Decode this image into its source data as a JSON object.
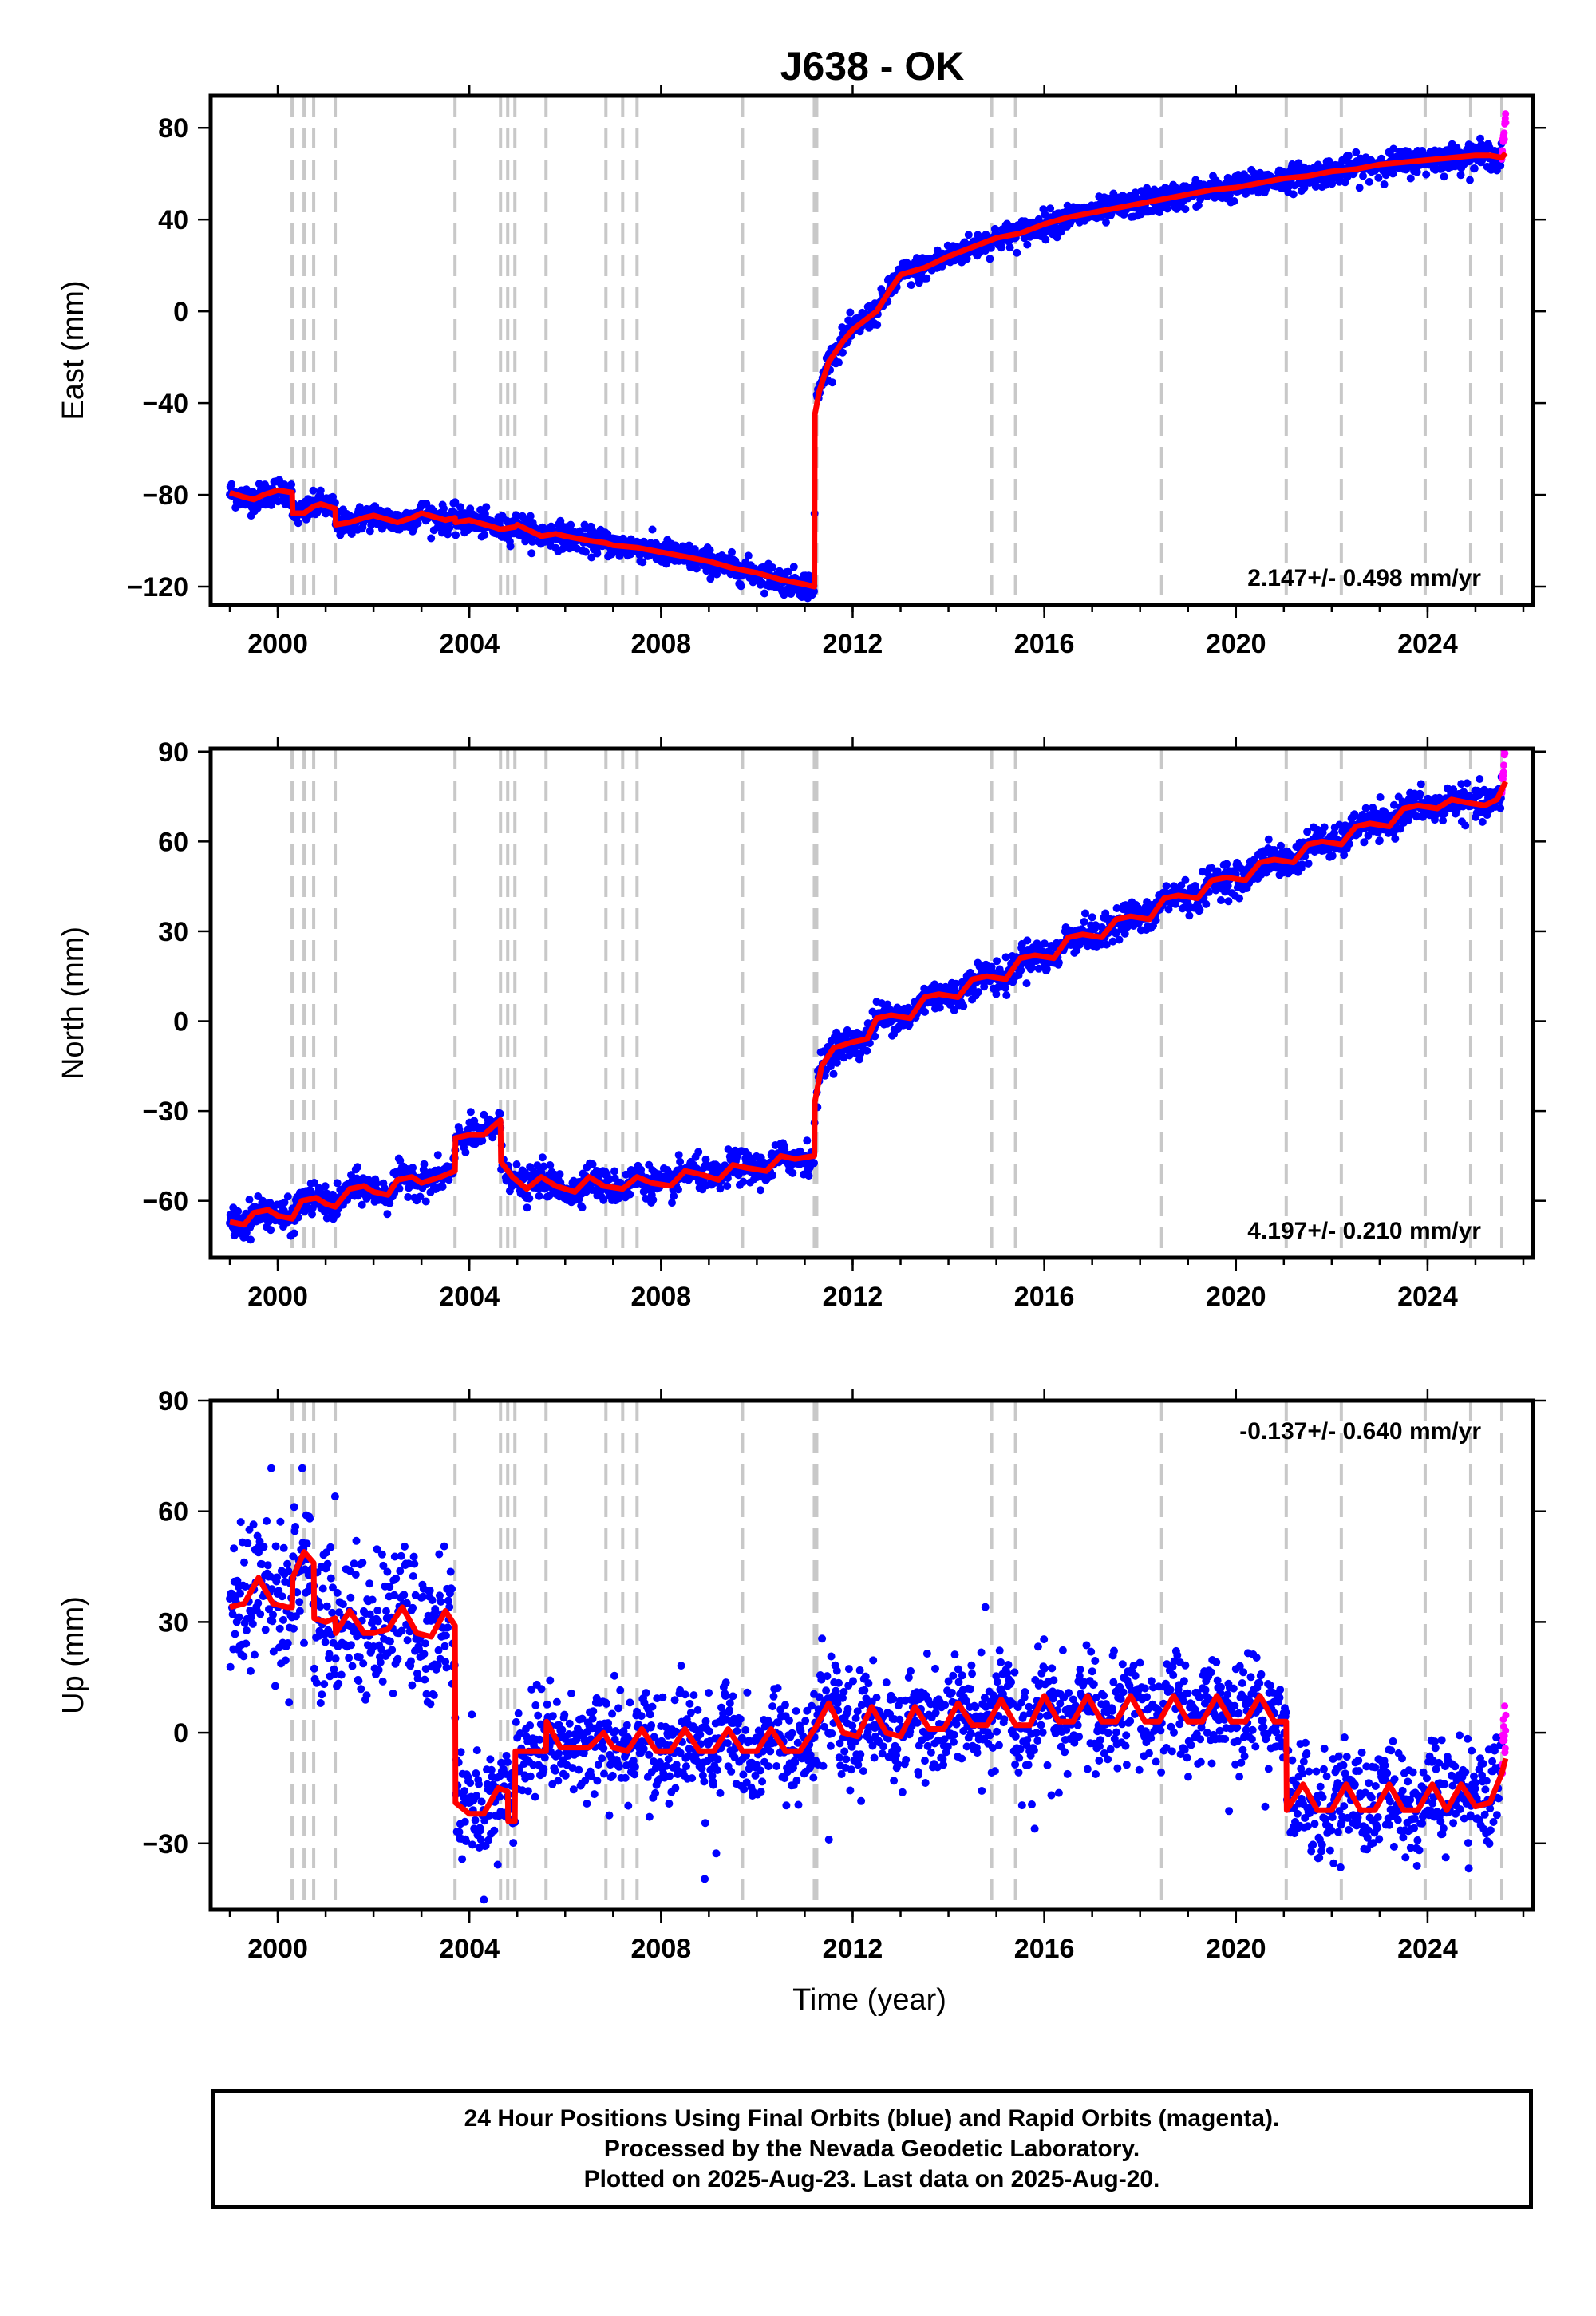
{
  "title": "J638 - OK",
  "chart_data": [
    {
      "type": "scatter",
      "name": "east",
      "ylabel": "East (mm)",
      "xlabel": "",
      "xlim": [
        1998.6,
        2026.2
      ],
      "ylim": [
        -128,
        94
      ],
      "yticks": [
        -120,
        -80,
        -40,
        0,
        40,
        80
      ],
      "xticks": [
        2000,
        2004,
        2008,
        2012,
        2016,
        2020,
        2024
      ],
      "rate": "2.147+/- 0.498 mm/yr",
      "rate_position": "bottom-right",
      "equipment_changes": [
        2000.3,
        2000.55,
        2000.75,
        2001.2,
        2003.7,
        2004.65,
        2004.8,
        2004.95,
        2005.6,
        2006.85,
        2007.2,
        2007.5,
        2009.7,
        2011.2,
        2011.25,
        2014.9,
        2015.4,
        2018.45,
        2021.05,
        2022.2,
        2023.95,
        2024.9,
        2025.55
      ],
      "model": [
        [
          1999.0,
          -79
        ],
        [
          1999.3,
          -81
        ],
        [
          1999.5,
          -82
        ],
        [
          1999.7,
          -80
        ],
        [
          2000.0,
          -78
        ],
        [
          2000.3,
          -79
        ],
        [
          2000.31,
          -88
        ],
        [
          2000.55,
          -88
        ],
        [
          2000.75,
          -85
        ],
        [
          2000.9,
          -84
        ],
        [
          2001.2,
          -86
        ],
        [
          2001.21,
          -93
        ],
        [
          2001.5,
          -92
        ],
        [
          2001.8,
          -90
        ],
        [
          2002.0,
          -89
        ],
        [
          2002.5,
          -92
        ],
        [
          2002.8,
          -90
        ],
        [
          2003.0,
          -88
        ],
        [
          2003.5,
          -91
        ],
        [
          2003.7,
          -90
        ],
        [
          2003.71,
          -92
        ],
        [
          2004.0,
          -91
        ],
        [
          2004.5,
          -94
        ],
        [
          2004.65,
          -95
        ],
        [
          2004.95,
          -94
        ],
        [
          2005.0,
          -93
        ],
        [
          2005.5,
          -98
        ],
        [
          2005.8,
          -97
        ],
        [
          2006.0,
          -98
        ],
        [
          2006.5,
          -100
        ],
        [
          2006.85,
          -101
        ],
        [
          2007.0,
          -102
        ],
        [
          2007.5,
          -103
        ],
        [
          2008.0,
          -105
        ],
        [
          2008.5,
          -107
        ],
        [
          2009.0,
          -109
        ],
        [
          2009.5,
          -112
        ],
        [
          2010.0,
          -114
        ],
        [
          2010.5,
          -117
        ],
        [
          2011.0,
          -119
        ],
        [
          2011.2,
          -120
        ],
        [
          2011.21,
          -45
        ],
        [
          2011.3,
          -35
        ],
        [
          2011.5,
          -22
        ],
        [
          2011.8,
          -13
        ],
        [
          2012.0,
          -8
        ],
        [
          2012.5,
          0
        ],
        [
          2012.8,
          10
        ],
        [
          2013.0,
          16
        ],
        [
          2013.5,
          19
        ],
        [
          2014.0,
          24
        ],
        [
          2014.5,
          28
        ],
        [
          2015.0,
          32
        ],
        [
          2015.5,
          34
        ],
        [
          2016.0,
          38
        ],
        [
          2016.5,
          41
        ],
        [
          2017.0,
          43
        ],
        [
          2017.5,
          45
        ],
        [
          2018.0,
          47
        ],
        [
          2018.5,
          49
        ],
        [
          2019.0,
          51
        ],
        [
          2019.5,
          53
        ],
        [
          2020.0,
          54
        ],
        [
          2020.5,
          56
        ],
        [
          2021.0,
          58
        ],
        [
          2021.5,
          59
        ],
        [
          2022.0,
          61
        ],
        [
          2022.5,
          62
        ],
        [
          2023.0,
          64
        ],
        [
          2023.5,
          65
        ],
        [
          2024.0,
          66
        ],
        [
          2024.5,
          67
        ],
        [
          2025.0,
          68
        ],
        [
          2025.3,
          68
        ],
        [
          2025.55,
          67
        ],
        [
          2025.63,
          69
        ]
      ]
    },
    {
      "type": "scatter",
      "name": "north",
      "ylabel": "North (mm)",
      "xlabel": "",
      "xlim": [
        1998.6,
        2026.2
      ],
      "ylim": [
        -79,
        91
      ],
      "yticks": [
        -60,
        -30,
        0,
        30,
        60,
        90
      ],
      "xticks": [
        2000,
        2004,
        2008,
        2012,
        2016,
        2020,
        2024
      ],
      "rate": "4.197+/- 0.210 mm/yr",
      "rate_position": "bottom-right",
      "equipment_changes": [
        2000.3,
        2000.55,
        2000.75,
        2001.2,
        2003.7,
        2004.65,
        2004.8,
        2004.95,
        2005.6,
        2006.85,
        2007.2,
        2007.5,
        2009.7,
        2011.2,
        2011.25,
        2014.9,
        2015.4,
        2018.45,
        2021.05,
        2022.2,
        2023.95,
        2024.9,
        2025.55
      ],
      "model": [
        [
          1999.0,
          -67
        ],
        [
          1999.3,
          -68
        ],
        [
          1999.5,
          -64
        ],
        [
          1999.8,
          -63
        ],
        [
          2000.0,
          -65
        ],
        [
          2000.3,
          -66
        ],
        [
          2000.5,
          -60
        ],
        [
          2000.8,
          -59
        ],
        [
          2001.0,
          -61
        ],
        [
          2001.2,
          -62
        ],
        [
          2001.5,
          -56
        ],
        [
          2001.8,
          -55
        ],
        [
          2002.0,
          -57
        ],
        [
          2002.3,
          -58
        ],
        [
          2002.5,
          -53
        ],
        [
          2002.8,
          -52
        ],
        [
          2003.0,
          -54
        ],
        [
          2003.4,
          -52
        ],
        [
          2003.7,
          -50
        ],
        [
          2003.71,
          -39
        ],
        [
          2004.0,
          -38
        ],
        [
          2004.3,
          -38
        ],
        [
          2004.65,
          -33
        ],
        [
          2004.66,
          -47
        ],
        [
          2004.9,
          -52
        ],
        [
          2005.2,
          -56
        ],
        [
          2005.5,
          -52
        ],
        [
          2005.8,
          -55
        ],
        [
          2006.2,
          -57
        ],
        [
          2006.5,
          -52
        ],
        [
          2006.8,
          -55
        ],
        [
          2007.2,
          -56
        ],
        [
          2007.5,
          -52
        ],
        [
          2007.8,
          -54
        ],
        [
          2008.2,
          -55
        ],
        [
          2008.5,
          -50
        ],
        [
          2008.8,
          -51
        ],
        [
          2009.2,
          -53
        ],
        [
          2009.5,
          -48
        ],
        [
          2009.8,
          -49
        ],
        [
          2010.2,
          -50
        ],
        [
          2010.5,
          -45
        ],
        [
          2010.8,
          -46
        ],
        [
          2011.2,
          -45
        ],
        [
          2011.21,
          -27
        ],
        [
          2011.35,
          -15
        ],
        [
          2011.6,
          -9
        ],
        [
          2012.0,
          -7
        ],
        [
          2012.3,
          -6
        ],
        [
          2012.5,
          1
        ],
        [
          2012.8,
          2
        ],
        [
          2013.2,
          1
        ],
        [
          2013.5,
          8
        ],
        [
          2013.8,
          9
        ],
        [
          2014.2,
          8
        ],
        [
          2014.5,
          14
        ],
        [
          2014.8,
          15
        ],
        [
          2015.2,
          14
        ],
        [
          2015.5,
          21
        ],
        [
          2015.8,
          22
        ],
        [
          2016.2,
          21
        ],
        [
          2016.5,
          28
        ],
        [
          2016.8,
          29
        ],
        [
          2017.2,
          28
        ],
        [
          2017.5,
          34
        ],
        [
          2017.8,
          35
        ],
        [
          2018.2,
          34
        ],
        [
          2018.5,
          41
        ],
        [
          2018.8,
          42
        ],
        [
          2019.2,
          41
        ],
        [
          2019.5,
          47
        ],
        [
          2019.8,
          48
        ],
        [
          2020.2,
          47
        ],
        [
          2020.5,
          53
        ],
        [
          2020.8,
          54
        ],
        [
          2021.2,
          53
        ],
        [
          2021.5,
          59
        ],
        [
          2021.8,
          60
        ],
        [
          2022.2,
          59
        ],
        [
          2022.5,
          65
        ],
        [
          2022.8,
          66
        ],
        [
          2023.2,
          65
        ],
        [
          2023.5,
          71
        ],
        [
          2023.8,
          72
        ],
        [
          2024.2,
          71
        ],
        [
          2024.5,
          74
        ],
        [
          2024.8,
          73
        ],
        [
          2025.2,
          72
        ],
        [
          2025.45,
          74
        ],
        [
          2025.63,
          80
        ]
      ]
    },
    {
      "type": "scatter",
      "name": "up",
      "ylabel": "Up (mm)",
      "xlabel": "Time (year)",
      "xlim": [
        1998.6,
        2026.2
      ],
      "ylim": [
        -48,
        90
      ],
      "yticks": [
        -30,
        0,
        30,
        60,
        90
      ],
      "xticks": [
        2000,
        2004,
        2008,
        2012,
        2016,
        2020,
        2024
      ],
      "rate": "-0.137+/- 0.640 mm/yr",
      "rate_position": "top-right",
      "equipment_changes": [
        2000.3,
        2000.55,
        2000.75,
        2001.2,
        2003.7,
        2004.65,
        2004.8,
        2004.95,
        2005.6,
        2006.85,
        2007.2,
        2007.5,
        2009.7,
        2011.2,
        2011.25,
        2014.9,
        2015.4,
        2018.45,
        2021.05,
        2022.2,
        2023.95,
        2024.9,
        2025.55
      ],
      "model": [
        [
          1999.0,
          34
        ],
        [
          1999.3,
          35
        ],
        [
          1999.6,
          42
        ],
        [
          1999.9,
          35
        ],
        [
          2000.2,
          34
        ],
        [
          2000.3,
          34
        ],
        [
          2000.31,
          42
        ],
        [
          2000.55,
          49
        ],
        [
          2000.75,
          46
        ],
        [
          2000.76,
          31
        ],
        [
          2001.0,
          30
        ],
        [
          2001.2,
          31
        ],
        [
          2001.21,
          27
        ],
        [
          2001.5,
          33
        ],
        [
          2001.8,
          27
        ],
        [
          2002.0,
          27
        ],
        [
          2002.3,
          28
        ],
        [
          2002.6,
          34
        ],
        [
          2002.9,
          27
        ],
        [
          2003.2,
          26
        ],
        [
          2003.5,
          33
        ],
        [
          2003.7,
          29
        ],
        [
          2003.71,
          -19
        ],
        [
          2004.0,
          -22
        ],
        [
          2004.3,
          -22
        ],
        [
          2004.6,
          -15
        ],
        [
          2004.8,
          -16
        ],
        [
          2004.81,
          -24
        ],
        [
          2004.95,
          -24
        ],
        [
          2004.96,
          -5
        ],
        [
          2005.3,
          -5
        ],
        [
          2005.6,
          -5
        ],
        [
          2005.61,
          3
        ],
        [
          2005.9,
          -4
        ],
        [
          2006.2,
          -4
        ],
        [
          2006.5,
          -4
        ],
        [
          2006.8,
          0
        ],
        [
          2007.0,
          -4
        ],
        [
          2007.3,
          -5
        ],
        [
          2007.6,
          1
        ],
        [
          2007.9,
          -5
        ],
        [
          2008.2,
          -5
        ],
        [
          2008.5,
          1
        ],
        [
          2008.8,
          -5
        ],
        [
          2009.1,
          -5
        ],
        [
          2009.4,
          1
        ],
        [
          2009.7,
          -5
        ],
        [
          2010.0,
          -5
        ],
        [
          2010.3,
          1
        ],
        [
          2010.6,
          -5
        ],
        [
          2010.9,
          -5
        ],
        [
          2011.2,
          1
        ],
        [
          2011.21,
          1
        ],
        [
          2011.5,
          8
        ],
        [
          2011.8,
          0
        ],
        [
          2012.1,
          -1
        ],
        [
          2012.4,
          7
        ],
        [
          2012.7,
          0
        ],
        [
          2013.0,
          -1
        ],
        [
          2013.3,
          7
        ],
        [
          2013.6,
          1
        ],
        [
          2013.9,
          1
        ],
        [
          2014.2,
          8
        ],
        [
          2014.5,
          2
        ],
        [
          2014.8,
          2
        ],
        [
          2015.1,
          9
        ],
        [
          2015.4,
          2
        ],
        [
          2015.7,
          2
        ],
        [
          2016.0,
          10
        ],
        [
          2016.3,
          3
        ],
        [
          2016.6,
          3
        ],
        [
          2016.9,
          10
        ],
        [
          2017.2,
          3
        ],
        [
          2017.5,
          3
        ],
        [
          2017.8,
          10
        ],
        [
          2018.1,
          3
        ],
        [
          2018.4,
          3
        ],
        [
          2018.7,
          10
        ],
        [
          2019.0,
          3
        ],
        [
          2019.3,
          3
        ],
        [
          2019.6,
          10
        ],
        [
          2019.9,
          3
        ],
        [
          2020.2,
          3
        ],
        [
          2020.5,
          10
        ],
        [
          2020.8,
          3
        ],
        [
          2021.05,
          3
        ],
        [
          2021.06,
          -21
        ],
        [
          2021.4,
          -14
        ],
        [
          2021.7,
          -21
        ],
        [
          2022.0,
          -21
        ],
        [
          2022.3,
          -14
        ],
        [
          2022.6,
          -21
        ],
        [
          2022.9,
          -21
        ],
        [
          2023.2,
          -14
        ],
        [
          2023.5,
          -21
        ],
        [
          2023.8,
          -21
        ],
        [
          2024.1,
          -14
        ],
        [
          2024.4,
          -21
        ],
        [
          2024.7,
          -14
        ],
        [
          2025.0,
          -20
        ],
        [
          2025.3,
          -19
        ],
        [
          2025.55,
          -11
        ],
        [
          2025.63,
          -7
        ]
      ]
    }
  ],
  "footer": {
    "line1": "24 Hour Positions Using Final Orbits (blue) and Rapid Orbits (magenta).",
    "line2": "Processed by the Nevada Geodetic Laboratory.",
    "line3": "Plotted on 2025-Aug-23. Last data on 2025-Aug-20."
  },
  "colors": {
    "final_orbits": "#0000ff",
    "rapid_orbits": "#ff00ff",
    "model": "#ff0000",
    "equipment_change": "#c8c8c8"
  }
}
